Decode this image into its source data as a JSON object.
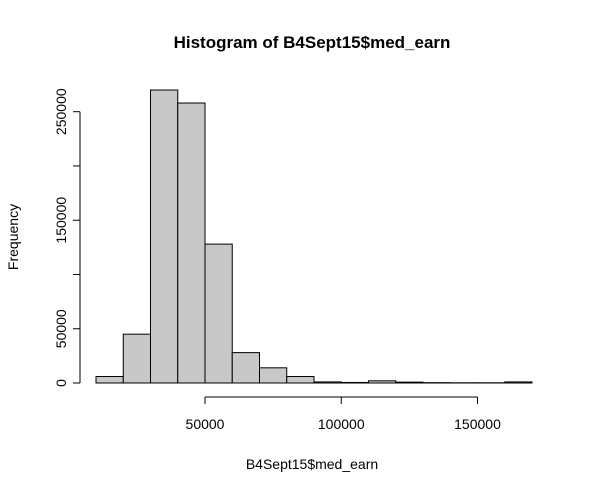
{
  "chart_data": {
    "type": "bar",
    "title": "Histogram of B4Sept15$med_earn",
    "xlabel": "B4Sept15$med_earn",
    "ylabel": "Frequency",
    "bin_width": 10000,
    "bins": [
      {
        "start": 10000,
        "end": 20000,
        "count": 6000
      },
      {
        "start": 20000,
        "end": 30000,
        "count": 45000
      },
      {
        "start": 30000,
        "end": 40000,
        "count": 270000
      },
      {
        "start": 40000,
        "end": 50000,
        "count": 258000
      },
      {
        "start": 50000,
        "end": 60000,
        "count": 128000
      },
      {
        "start": 60000,
        "end": 70000,
        "count": 28000
      },
      {
        "start": 70000,
        "end": 80000,
        "count": 14000
      },
      {
        "start": 80000,
        "end": 90000,
        "count": 6000
      },
      {
        "start": 90000,
        "end": 100000,
        "count": 1000
      },
      {
        "start": 100000,
        "end": 110000,
        "count": 500
      },
      {
        "start": 110000,
        "end": 120000,
        "count": 2000
      },
      {
        "start": 120000,
        "end": 130000,
        "count": 800
      },
      {
        "start": 130000,
        "end": 140000,
        "count": 300
      },
      {
        "start": 140000,
        "end": 150000,
        "count": 200
      },
      {
        "start": 150000,
        "end": 160000,
        "count": 200
      },
      {
        "start": 160000,
        "end": 170000,
        "count": 1000
      }
    ],
    "xlim": [
      10000,
      170000
    ],
    "ylim": [
      0,
      270000
    ],
    "x_ticks": [
      50000,
      100000,
      150000
    ],
    "x_tick_labels": [
      "50000",
      "100000",
      "150000"
    ],
    "y_ticks": [
      0,
      50000,
      100000,
      150000,
      200000,
      250000
    ],
    "y_tick_labels": [
      "0",
      "50000",
      "",
      "150000",
      "",
      "250000"
    ],
    "grid": false,
    "colors": {
      "bar_fill": "#c8c8c8",
      "bar_stroke": "#000000"
    }
  }
}
